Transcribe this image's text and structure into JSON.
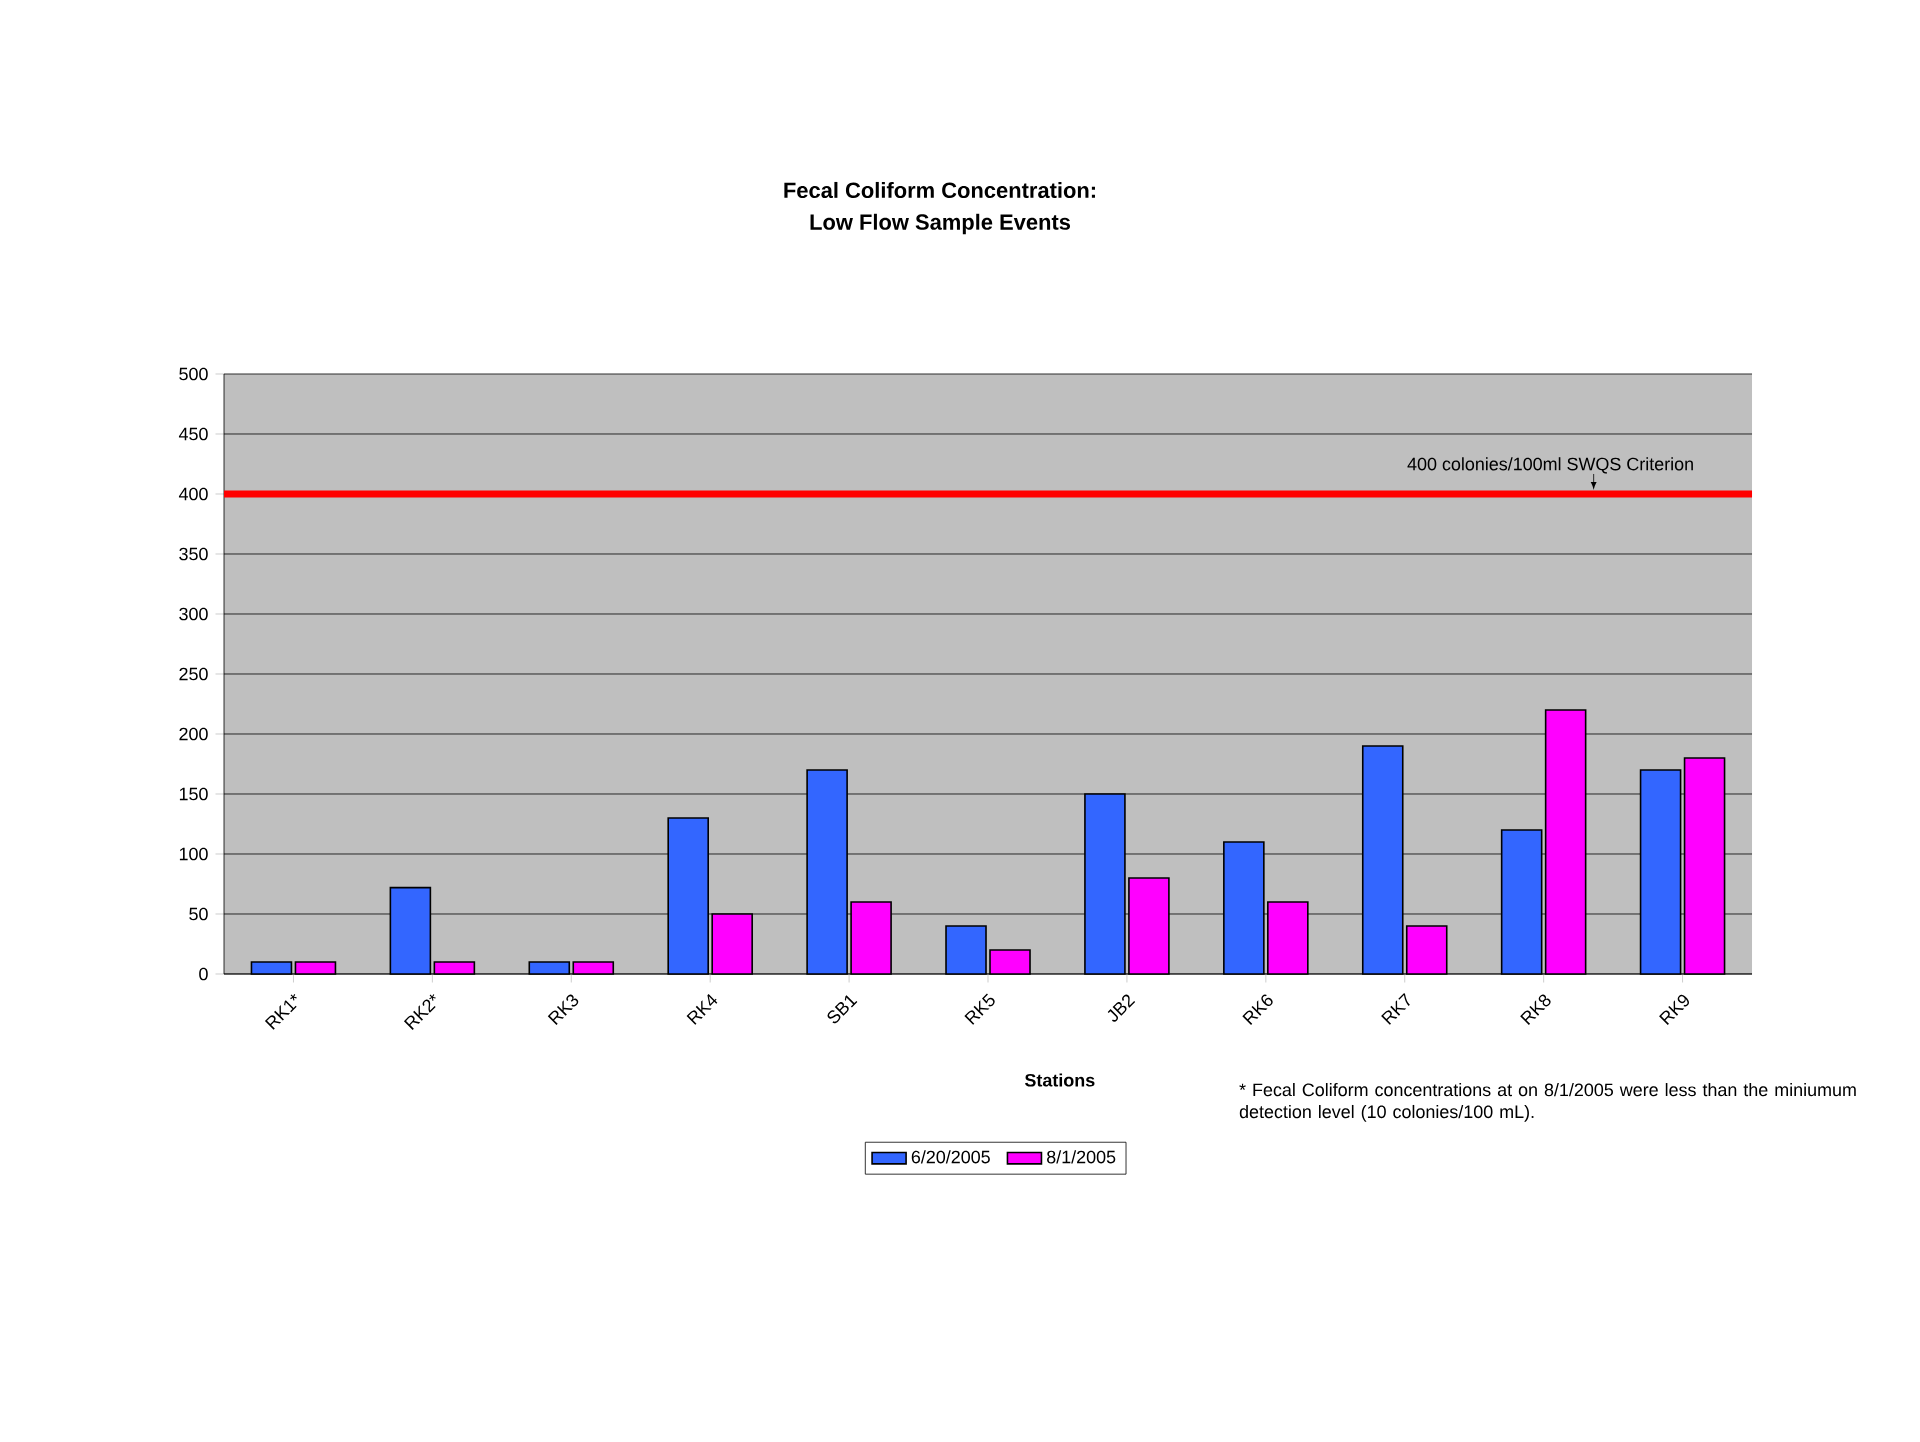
{
  "chart_data": {
    "type": "bar",
    "title": "Fecal Coliform Concentration:",
    "subtitle": "Low Flow Sample Events",
    "xlabel": "Stations",
    "categories": [
      "RK1*",
      "RK2*",
      "RK3",
      "RK4",
      "SB1",
      "RK5",
      "JB2",
      "RK6",
      "RK7",
      "RK8",
      "RK9"
    ],
    "series": [
      {
        "name": "6/20/2005",
        "color": "#3366ff",
        "values": [
          10,
          72,
          10,
          130,
          170,
          40,
          150,
          110,
          190,
          120,
          170
        ]
      },
      {
        "name": "8/1/2005",
        "color": "#ff00ff",
        "values": [
          10,
          10,
          10,
          50,
          60,
          20,
          80,
          60,
          40,
          220,
          180
        ]
      }
    ],
    "ylim": [
      0,
      500
    ],
    "yticks": [
      0,
      50,
      100,
      150,
      200,
      250,
      300,
      350,
      400,
      450,
      500
    ],
    "grid": "y",
    "legend": "bottom",
    "ref_lines": [
      {
        "axis": "y",
        "value": 400,
        "label": "400 colonies/100ml SWQS Criterion",
        "color": "#ff0000"
      }
    ],
    "annotations": [
      "* Fecal Coliform concentrations at on 8/1/2005 were less than the miniumum detection level (10 colonies/100 mL)."
    ]
  }
}
